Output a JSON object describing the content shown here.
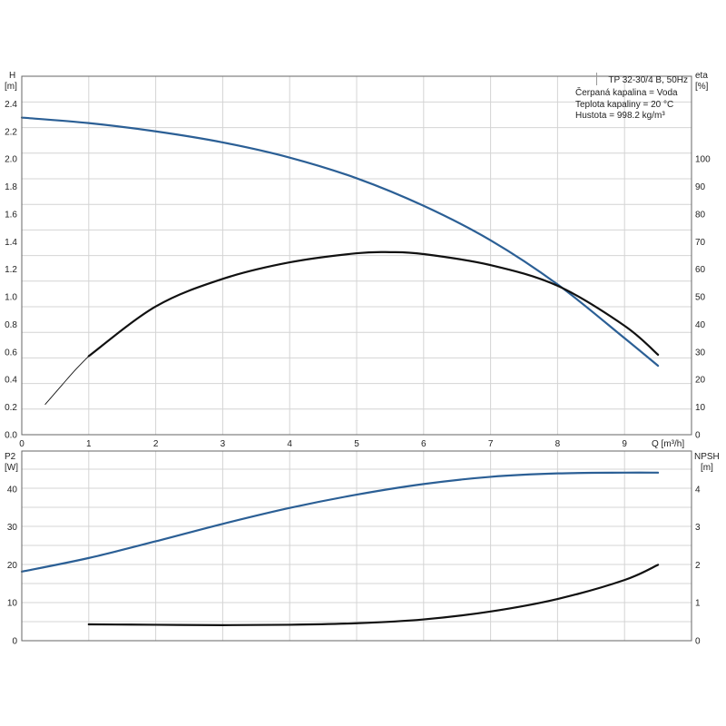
{
  "legend_box": {
    "title": "TP 32-30/4 B, 50Hz",
    "lines": [
      "Čerpaná kapalina = Voda",
      "Teplota kapaliny = 20 °C",
      "Hustota = 998.2 kg/m³"
    ]
  },
  "colors": {
    "blue": "#2b5f95",
    "black": "#111111"
  },
  "chart_data": [
    {
      "type": "line",
      "x_label": "Q [m³/h]",
      "y_label_left": "H [m]",
      "y_label_right": "eta [%]",
      "xlim": [
        0,
        10
      ],
      "ylim_left": [
        0,
        2.6
      ],
      "ylim_right": [
        0,
        130
      ],
      "x_ticks": [
        0,
        1,
        2,
        3,
        4,
        5,
        6,
        7,
        8,
        9
      ],
      "y_ticks_left": [
        0,
        0.2,
        0.4,
        0.6,
        0.8,
        1.0,
        1.2,
        1.4,
        1.6,
        1.8,
        2.0,
        2.2,
        2.4
      ],
      "y_tick_labels_left": [
        "0.0",
        "0.2",
        "0.4",
        "0.6",
        "0.8",
        "1.0",
        "1.2",
        "1.4",
        "1.6",
        "1.8",
        "2.0",
        "2.2",
        "2.4"
      ],
      "y_ticks_right": [
        0,
        10,
        20,
        30,
        40,
        50,
        60,
        70,
        80,
        90,
        100
      ],
      "series": [
        {
          "name": "H",
          "axis": "left",
          "color": "#2b5f95",
          "x": [
            0,
            1,
            2,
            3,
            4,
            5,
            6,
            7,
            8,
            9,
            9.5
          ],
          "y": [
            2.3,
            2.26,
            2.2,
            2.12,
            2.01,
            1.86,
            1.66,
            1.41,
            1.09,
            0.7,
            0.5
          ]
        },
        {
          "name": "eta",
          "axis": "right",
          "color": "#111111",
          "x": [
            1,
            2,
            3,
            4,
            5,
            5.5,
            6,
            7,
            8,
            9,
            9.5
          ],
          "y": [
            28.5,
            46.5,
            56.5,
            62.5,
            65.8,
            66.2,
            65.5,
            61.5,
            54,
            39.5,
            29
          ]
        },
        {
          "name": "eta_extension",
          "axis": "right",
          "color": "#111111",
          "thin": true,
          "x": [
            0.35,
            0.6,
            0.8,
            1.0
          ],
          "y": [
            11,
            18,
            23.5,
            28.5
          ]
        }
      ]
    },
    {
      "type": "line",
      "x_label": "",
      "y_label_left": "P2 [W]",
      "y_label_right": "NPSH [m]",
      "xlim": [
        0,
        10
      ],
      "ylim_left": [
        0,
        50
      ],
      "ylim_right": [
        0,
        5
      ],
      "y_ticks_left": [
        0,
        10,
        20,
        30,
        40
      ],
      "y_ticks_right": [
        0,
        1,
        2,
        3,
        4
      ],
      "series": [
        {
          "name": "P2",
          "axis": "left",
          "color": "#2b5f95",
          "x": [
            0,
            1,
            2,
            3,
            4,
            5,
            6,
            7,
            8,
            9,
            9.5
          ],
          "y": [
            18.2,
            21.8,
            26.2,
            30.8,
            35,
            38.5,
            41.3,
            43.2,
            44.1,
            44.3,
            44.3
          ]
        },
        {
          "name": "NPSH",
          "axis": "right",
          "color": "#111111",
          "x": [
            1,
            2,
            3,
            4,
            5,
            6,
            7,
            8,
            9,
            9.5
          ],
          "y": [
            0.43,
            0.42,
            0.41,
            0.42,
            0.46,
            0.56,
            0.77,
            1.1,
            1.6,
            2.0
          ]
        }
      ]
    }
  ]
}
